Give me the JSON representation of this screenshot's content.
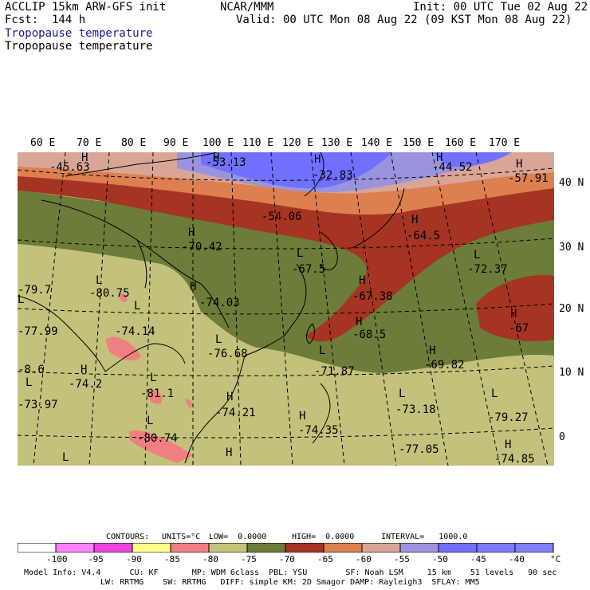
{
  "header": {
    "model": "ACCLIP 15km ARW-GFS init",
    "forecast": "Fcst:  144 h",
    "org": "NCAR/MMM",
    "init": "Init: 00 UTC Tue 02 Aug 22",
    "valid": "Valid: 00 UTC Mon 08 Aug 22 (09 KST Mon 08 Aug 22)",
    "field_colored": "Tropopause temperature",
    "field_contour": "Tropopause temperature"
  },
  "lon_labels": [
    "60 E",
    "70 E",
    "80 E",
    "90 E",
    "100 E",
    "110 E",
    "120 E",
    "130 E",
    "140 E",
    "150 E",
    "160 E",
    "170 E"
  ],
  "lat_labels": [
    "40 N",
    "30 N",
    "20 N",
    "10 N",
    "0"
  ],
  "map_labels": {
    "h": [
      "H",
      "H",
      "H",
      "H",
      "H",
      "H",
      "H",
      "H",
      "H",
      "H",
      "H",
      "H",
      "H",
      "H",
      "H",
      "H",
      "H"
    ],
    "l": [
      "L",
      "L",
      "L",
      "L",
      "L",
      "L",
      "L",
      "L",
      "L",
      "L",
      "L",
      "L",
      "L"
    ],
    "values": [
      "-45.63",
      "-53.13",
      "-32.83",
      "-44.52",
      "-57.91",
      "-54.06",
      "-70.42",
      "-64.5",
      "-72.37",
      "-67.5",
      "-79.7",
      "-80.75",
      "-74.03",
      "-67.38",
      "-77.99",
      "-74.14",
      "-67",
      "-76.68",
      "-68.5",
      "-69.82",
      "-8.6",
      "-71.87",
      "-74.2",
      "-81.1",
      "-73.97",
      "-74.21",
      "-73.18",
      "-79.27",
      "-74.35",
      "-80.74",
      "-77.05",
      "-74.85"
    ]
  },
  "colors": {
    "c_lt100": "#ffffff",
    "c_100_95": "#ff80ff",
    "c_95_90": "#ee44dd",
    "c_90_85": "#ffff88",
    "c_85_80": "#f08080",
    "c_80_75": "#c2c27c",
    "c_75_70": "#6b7d38",
    "c_70_65": "#a63423",
    "c_65_60": "#dd8050",
    "c_60_55": "#d8a696",
    "c_55_50": "#9a94de",
    "c_50_45": "#7070ff",
    "c_45_40": "#7a7aff",
    "c_gt40": "#8080ff"
  },
  "colorbar": {
    "ticks": [
      "-100",
      "-95",
      "-90",
      "-85",
      "-80",
      "-75",
      "-70",
      "-65",
      "-60",
      "-55",
      "-50",
      "-45",
      "-40"
    ],
    "unit": "°C"
  },
  "contour_info": {
    "contours": "CONTOURS:",
    "units": "UNITS=°C",
    "low": "LOW=  0.0000",
    "high": "HIGH=  0.0000",
    "interval": "INTERVAL=   1000.0"
  },
  "footer": {
    "line1": "Model Info: V4.4      CU: KF       MP: WDM 6class  PBL: YSU        SF: Noah LSM     15 km    51 levels   90 sec",
    "line2": "LW: RRTMG    SW: RRTMG   DIFF: simple KM: 2D Smagor DAMP: Rayleigh3  SFLAY: MM5"
  }
}
